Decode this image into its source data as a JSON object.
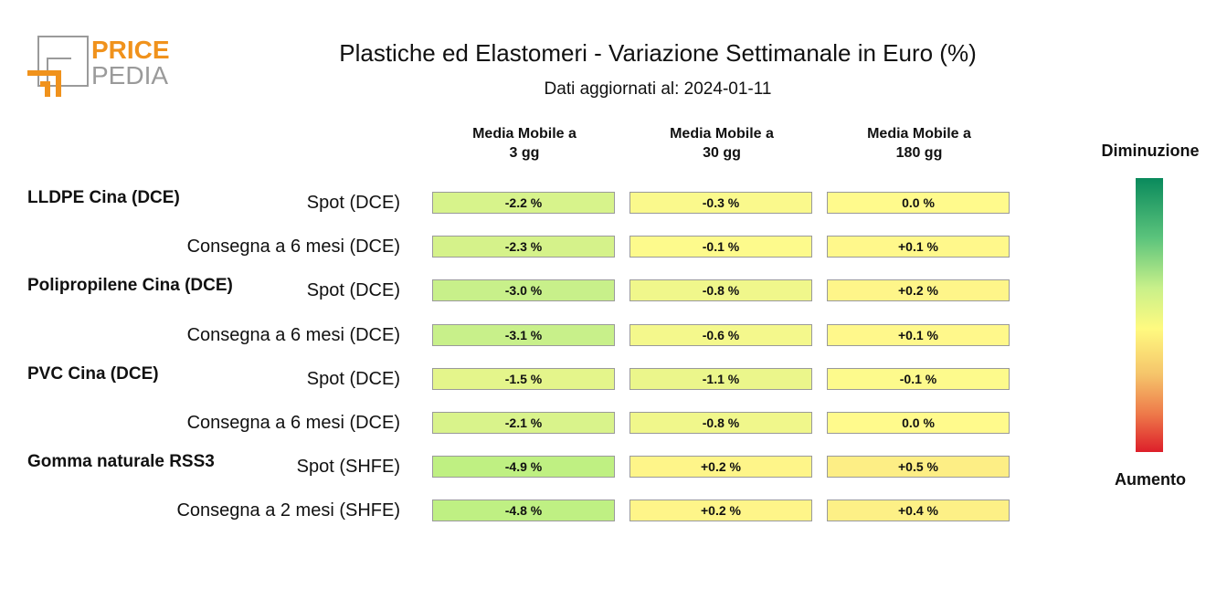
{
  "logo": {
    "line1": "PRICE",
    "line2": "PEDIA",
    "colors": {
      "orange": "#f0921c",
      "gray": "#9a9a9a"
    }
  },
  "header": {
    "title": "Plastiche ed Elastomeri - Variazione Settimanale in Euro (%)",
    "subtitle": "Dati aggiornati al: 2024-01-11"
  },
  "legend": {
    "top_label": "Diminuzione",
    "bottom_label": "Aumento",
    "colors": [
      "#0a8a5c",
      "#5cc47c",
      "#c8f08a",
      "#fffa80",
      "#f5c36a",
      "#ee7a4a",
      "#dd1f2a"
    ]
  },
  "chart_data": {
    "type": "table",
    "columns": [
      "Media Mobile a\n3 gg",
      "Media Mobile a\n30 gg",
      "Media Mobile a\n180 gg"
    ],
    "column_lines": [
      [
        "Media Mobile a",
        "3 gg"
      ],
      [
        "Media Mobile a",
        "30 gg"
      ],
      [
        "Media Mobile a",
        "180 gg"
      ]
    ],
    "groups": [
      {
        "name": "LLDPE Cina (DCE)",
        "rows": [
          {
            "label": "Spot (DCE)",
            "values": [
              -2.2,
              -0.3,
              0.0
            ],
            "texts": [
              "-2.2 %",
              "-0.3 %",
              "0.0 %"
            ]
          },
          {
            "label": "Consegna a 6 mesi (DCE)",
            "values": [
              -2.3,
              -0.1,
              0.1
            ],
            "texts": [
              "-2.3 %",
              "-0.1 %",
              "+0.1 %"
            ]
          }
        ]
      },
      {
        "name": "Polipropilene Cina (DCE)",
        "rows": [
          {
            "label": "Spot (DCE)",
            "values": [
              -3.0,
              -0.8,
              0.2
            ],
            "texts": [
              "-3.0 %",
              "-0.8 %",
              "+0.2 %"
            ]
          },
          {
            "label": "Consegna a 6 mesi (DCE)",
            "values": [
              -3.1,
              -0.6,
              0.1
            ],
            "texts": [
              "-3.1 %",
              "-0.6 %",
              "+0.1 %"
            ]
          }
        ]
      },
      {
        "name": "PVC Cina (DCE)",
        "rows": [
          {
            "label": "Spot (DCE)",
            "values": [
              -1.5,
              -1.1,
              -0.1
            ],
            "texts": [
              "-1.5 %",
              "-1.1 %",
              "-0.1 %"
            ]
          },
          {
            "label": "Consegna a 6 mesi (DCE)",
            "values": [
              -2.1,
              -0.8,
              0.0
            ],
            "texts": [
              "-2.1 %",
              "-0.8 %",
              "0.0 %"
            ]
          }
        ]
      },
      {
        "name": "Gomma naturale RSS3",
        "rows": [
          {
            "label": "Spot (SHFE)",
            "values": [
              -4.9,
              0.2,
              0.5
            ],
            "texts": [
              "-4.9 %",
              "+0.2 %",
              "+0.5 %"
            ]
          },
          {
            "label": "Consegna a 2 mesi (SHFE)",
            "values": [
              -4.8,
              0.2,
              0.4
            ],
            "texts": [
              "-4.8 %",
              "+0.2 %",
              "+0.4 %"
            ]
          }
        ]
      }
    ]
  }
}
